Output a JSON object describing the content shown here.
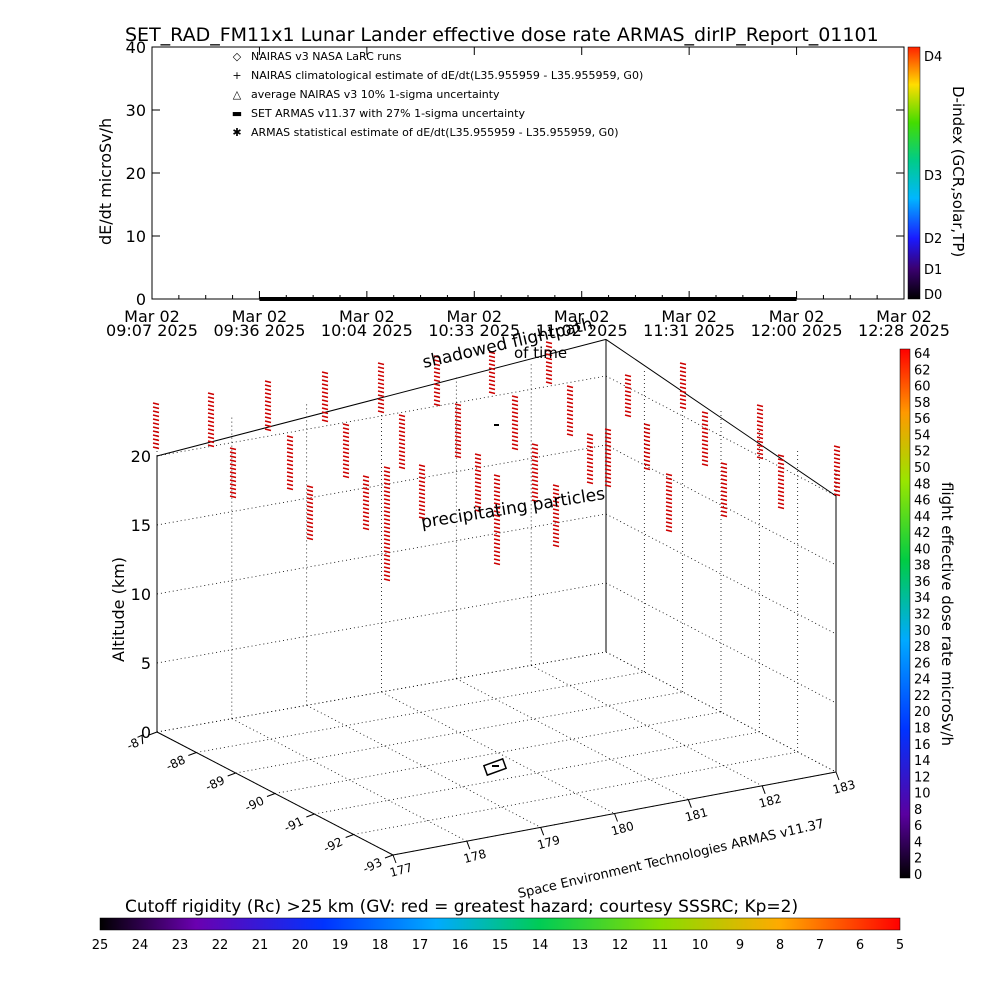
{
  "title": "SET_RAD_FM11x1   Lunar Lander effective dose rate ARMAS_dirIP_Report_01101",
  "footer_credit": "Space Environment Technologies ARMAS v11.37",
  "colors": {
    "dose_series": "#0000ff",
    "flight_track": "#000000",
    "sticks": "#cc0000"
  },
  "chart_data": [
    {
      "type": "line",
      "title": "SET_RAD_FM11x1   Lunar Lander effective dose rate ARMAS_dirIP_Report_01101",
      "ylabel": "dE/dt microSv/h",
      "ylim": [
        0,
        40
      ],
      "yticks": [
        "0",
        "10",
        "20",
        "30",
        "40"
      ],
      "xtick_labels": [
        {
          "date": "Mar 02",
          "time": "09:07  2025"
        },
        {
          "date": "Mar 02",
          "time": "09:36  2025"
        },
        {
          "date": "Mar 02",
          "time": "10:04  2025"
        },
        {
          "date": "Mar 02",
          "time": "10:33  2025"
        },
        {
          "date": "Mar 02",
          "time": "11:02  2025"
        },
        {
          "date": "Mar 02",
          "time": "11:31  2025"
        },
        {
          "date": "Mar 02",
          "time": "12:00  2025"
        },
        {
          "date": "Mar 02",
          "time": "12:28  2025"
        }
      ],
      "legend": [
        {
          "symbol": "◇",
          "label": "NAIRAS v3 NASA LaRC runs"
        },
        {
          "symbol": "+",
          "label": "NAIRAS climatological estimate of dE/dt(L35.955959 - L35.955959, G0)"
        },
        {
          "symbol": "△",
          "label": "average NAIRAS v3 10% 1-sigma uncertainty"
        },
        {
          "symbol": "▬",
          "label": "SET ARMAS v11.37 with 27% 1-sigma uncertainty"
        },
        {
          "symbol": "✱",
          "label": "ARMAS statistical estimate of dE/dt(L35.955959 - L35.955959, G0)"
        }
      ],
      "series": [
        {
          "name": "SET ARMAS v11.37 with 27% 1-sigma uncertainty",
          "x": [
            "09:36 2025",
            "12:00 2025"
          ],
          "y": [
            0,
            0
          ]
        }
      ],
      "colorbar": {
        "label": "D-index (GCR,solar,TP)",
        "ticks": [
          "D0",
          "D1",
          "D2",
          "D3",
          "D4"
        ]
      }
    },
    {
      "type": "scatter",
      "zlabel": "Altitude (km)",
      "zticks": [
        "0",
        "5",
        "10",
        "15",
        "20"
      ],
      "lat_ticks": [
        "-87",
        "-88",
        "-89",
        "-90",
        "-91",
        "-92",
        "-93"
      ],
      "lon_ticks": [
        "177",
        "178",
        "179",
        "180",
        "181",
        "182",
        "183"
      ],
      "annotations": [
        "shadowed flightpath",
        "precipitating particles",
        "of time"
      ],
      "colorbar": {
        "label": "flight effective dose rate microSv/h",
        "ticks": [
          "0",
          "2",
          "4",
          "6",
          "8",
          "10",
          "12",
          "14",
          "16",
          "18",
          "20",
          "22",
          "24",
          "26",
          "28",
          "30",
          "32",
          "34",
          "36",
          "38",
          "40",
          "42",
          "44",
          "46",
          "48",
          "50",
          "52",
          "54",
          "56",
          "58",
          "60",
          "62",
          "64"
        ]
      }
    },
    {
      "type": "heatmap",
      "title": "Cutoff rigidity (Rc) >25 km (GV: red = greatest hazard; courtesy SSSRC; Kp=2)",
      "ticks": [
        "25",
        "24",
        "23",
        "22",
        "21",
        "20",
        "19",
        "18",
        "17",
        "16",
        "15",
        "14",
        "13",
        "12",
        "11",
        "10",
        "9",
        "8",
        "7",
        "6",
        "5"
      ]
    }
  ]
}
